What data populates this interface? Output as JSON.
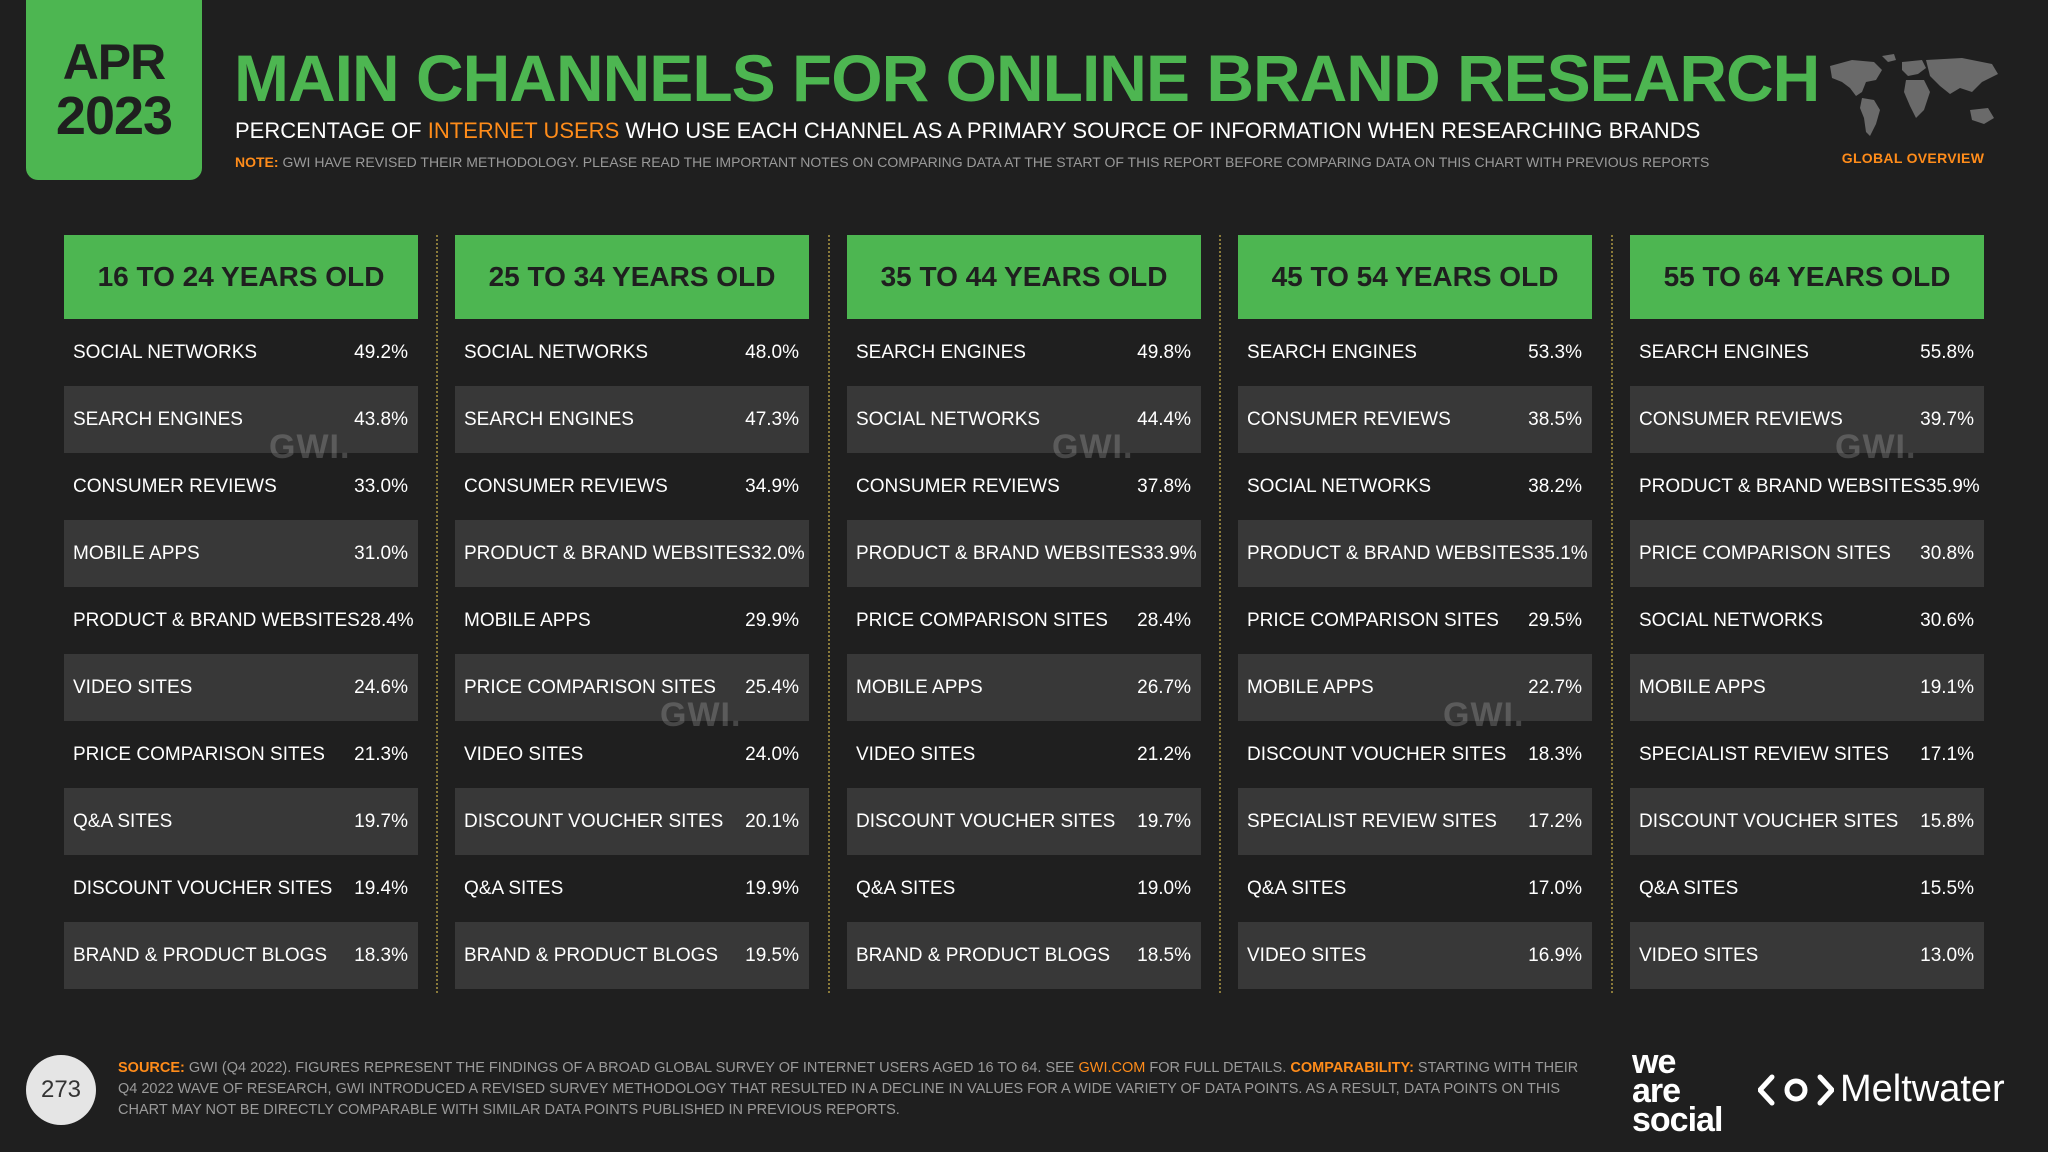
{
  "badge": {
    "month": "APR",
    "year": "2023"
  },
  "header": {
    "title": "MAIN CHANNELS FOR ONLINE BRAND RESEARCH",
    "subtitle_pre": "PERCENTAGE OF ",
    "subtitle_highlight": "INTERNET USERS",
    "subtitle_post": " WHO USE EACH CHANNEL AS A PRIMARY SOURCE OF INFORMATION WHEN RESEARCHING BRANDS",
    "note_label": "NOTE:",
    "note_text": " GWI HAVE REVISED THEIR METHODOLOGY. PLEASE READ THE IMPORTANT NOTES ON COMPARING DATA AT THE START OF THIS REPORT BEFORE COMPARING DATA ON THIS CHART WITH PREVIOUS REPORTS",
    "global_overview": "GLOBAL OVERVIEW"
  },
  "watermark": "GWI.",
  "chart_data": {
    "type": "table",
    "value_suffix": "%",
    "panels": [
      {
        "header": "16 TO 24 YEARS OLD",
        "rows": [
          {
            "label": "SOCIAL NETWORKS",
            "value": "49.2%"
          },
          {
            "label": "SEARCH ENGINES",
            "value": "43.8%"
          },
          {
            "label": "CONSUMER REVIEWS",
            "value": "33.0%"
          },
          {
            "label": "MOBILE APPS",
            "value": "31.0%"
          },
          {
            "label": "PRODUCT & BRAND WEBSITES",
            "value": "28.4%"
          },
          {
            "label": "VIDEO SITES",
            "value": "24.6%"
          },
          {
            "label": "PRICE COMPARISON SITES",
            "value": "21.3%"
          },
          {
            "label": "Q&A SITES",
            "value": "19.7%"
          },
          {
            "label": "DISCOUNT VOUCHER SITES",
            "value": "19.4%"
          },
          {
            "label": "BRAND & PRODUCT BLOGS",
            "value": "18.3%"
          }
        ]
      },
      {
        "header": "25 TO 34 YEARS OLD",
        "rows": [
          {
            "label": "SOCIAL NETWORKS",
            "value": "48.0%"
          },
          {
            "label": "SEARCH ENGINES",
            "value": "47.3%"
          },
          {
            "label": "CONSUMER REVIEWS",
            "value": "34.9%"
          },
          {
            "label": "PRODUCT & BRAND WEBSITES",
            "value": "32.0%"
          },
          {
            "label": "MOBILE APPS",
            "value": "29.9%"
          },
          {
            "label": "PRICE COMPARISON SITES",
            "value": "25.4%"
          },
          {
            "label": "VIDEO SITES",
            "value": "24.0%"
          },
          {
            "label": "DISCOUNT VOUCHER SITES",
            "value": "20.1%"
          },
          {
            "label": "Q&A SITES",
            "value": "19.9%"
          },
          {
            "label": "BRAND & PRODUCT BLOGS",
            "value": "19.5%"
          }
        ]
      },
      {
        "header": "35 TO 44 YEARS OLD",
        "rows": [
          {
            "label": "SEARCH ENGINES",
            "value": "49.8%"
          },
          {
            "label": "SOCIAL NETWORKS",
            "value": "44.4%"
          },
          {
            "label": "CONSUMER REVIEWS",
            "value": "37.8%"
          },
          {
            "label": "PRODUCT & BRAND WEBSITES",
            "value": "33.9%"
          },
          {
            "label": "PRICE COMPARISON SITES",
            "value": "28.4%"
          },
          {
            "label": "MOBILE APPS",
            "value": "26.7%"
          },
          {
            "label": "VIDEO SITES",
            "value": "21.2%"
          },
          {
            "label": "DISCOUNT VOUCHER SITES",
            "value": "19.7%"
          },
          {
            "label": "Q&A SITES",
            "value": "19.0%"
          },
          {
            "label": "BRAND & PRODUCT BLOGS",
            "value": "18.5%"
          }
        ]
      },
      {
        "header": "45 TO 54 YEARS OLD",
        "rows": [
          {
            "label": "SEARCH ENGINES",
            "value": "53.3%"
          },
          {
            "label": "CONSUMER REVIEWS",
            "value": "38.5%"
          },
          {
            "label": "SOCIAL NETWORKS",
            "value": "38.2%"
          },
          {
            "label": "PRODUCT & BRAND WEBSITES",
            "value": "35.1%"
          },
          {
            "label": "PRICE COMPARISON SITES",
            "value": "29.5%"
          },
          {
            "label": "MOBILE APPS",
            "value": "22.7%"
          },
          {
            "label": "DISCOUNT VOUCHER SITES",
            "value": "18.3%"
          },
          {
            "label": "SPECIALIST REVIEW SITES",
            "value": "17.2%"
          },
          {
            "label": "Q&A SITES",
            "value": "17.0%"
          },
          {
            "label": "VIDEO SITES",
            "value": "16.9%"
          }
        ]
      },
      {
        "header": "55 TO 64 YEARS OLD",
        "rows": [
          {
            "label": "SEARCH ENGINES",
            "value": "55.8%"
          },
          {
            "label": "CONSUMER REVIEWS",
            "value": "39.7%"
          },
          {
            "label": "PRODUCT & BRAND WEBSITES",
            "value": "35.9%"
          },
          {
            "label": "PRICE COMPARISON SITES",
            "value": "30.8%"
          },
          {
            "label": "SOCIAL NETWORKS",
            "value": "30.6%"
          },
          {
            "label": "MOBILE APPS",
            "value": "19.1%"
          },
          {
            "label": "SPECIALIST REVIEW SITES",
            "value": "17.1%"
          },
          {
            "label": "DISCOUNT VOUCHER SITES",
            "value": "15.8%"
          },
          {
            "label": "Q&A SITES",
            "value": "15.5%"
          },
          {
            "label": "VIDEO SITES",
            "value": "13.0%"
          }
        ]
      }
    ]
  },
  "footer": {
    "page_number": "273",
    "source_label": "SOURCE:",
    "source_text": " GWI (Q4 2022). FIGURES REPRESENT THE FINDINGS OF A BROAD GLOBAL SURVEY OF INTERNET USERS AGED 16 TO 64. SEE ",
    "source_link": "GWI.COM",
    "source_text2": " FOR FULL DETAILS. ",
    "comparability_label": "COMPARABILITY:",
    "comparability_text": " STARTING WITH THEIR Q4 2022 WAVE OF RESEARCH, GWI INTRODUCED A REVISED SURVEY METHODOLOGY THAT RESULTED IN A DECLINE IN VALUES FOR A WIDE VARIETY OF DATA POINTS. AS A RESULT, DATA POINTS ON THIS CHART MAY NOT BE DIRECTLY COMPARABLE WITH SIMILAR DATA POINTS PUBLISHED IN PREVIOUS REPORTS.",
    "logo1": [
      "we",
      "are",
      "social"
    ],
    "logo2": "Meltwater"
  },
  "colors": {
    "accent": "#4db651",
    "highlight": "#ff8c1a",
    "background": "#1f1f1f",
    "band": "#383838"
  }
}
